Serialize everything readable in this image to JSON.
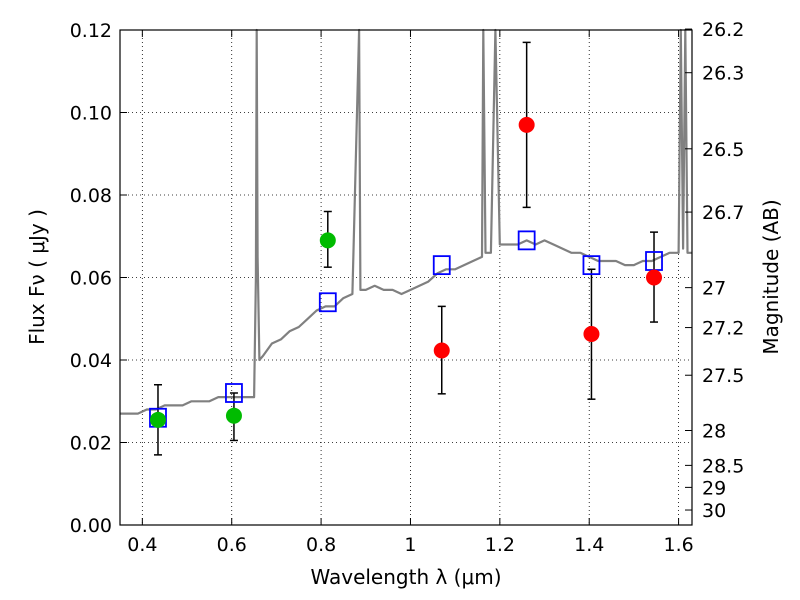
{
  "chart_data": {
    "type": "scatter",
    "xlabel": "Wavelength  λ (μm)",
    "ylabel": "Flux  Fν  ( μJy )",
    "y2label": "Magnitude (AB)",
    "xlim": [
      0.35,
      1.63
    ],
    "ylim": [
      0.0,
      0.12
    ],
    "xticks": [
      0.4,
      0.6,
      0.8,
      1.0,
      1.2,
      1.4,
      1.6
    ],
    "xtick_labels": [
      "0.4",
      "0.6",
      "0.8",
      "1",
      "1.2",
      "1.4",
      "1.6"
    ],
    "yticks": [
      0.0,
      0.02,
      0.04,
      0.06,
      0.08,
      0.1,
      0.12
    ],
    "ytick_labels": [
      "0.00",
      "0.02",
      "0.04",
      "0.06",
      "0.08",
      "0.10",
      "0.12"
    ],
    "mag_ticks": [
      "26.2",
      "26.3",
      "26.5",
      "26.7",
      "27",
      "27.2",
      "27.5",
      "28",
      "28.5",
      "29",
      "30"
    ],
    "grid": true,
    "legend": "none",
    "colors": {
      "spectrum": "#808080",
      "model": "#0000ff",
      "green": "#00bb00",
      "red": "#ff0000",
      "errorbar": "#000000"
    },
    "series": [
      {
        "marker": "line",
        "x": [
          0.35,
          0.37,
          0.39,
          0.41,
          0.43,
          0.45,
          0.47,
          0.49,
          0.51,
          0.53,
          0.55,
          0.57,
          0.59,
          0.61,
          0.63,
          0.65,
          0.654,
          0.656,
          0.658,
          0.662,
          0.67,
          0.69,
          0.71,
          0.73,
          0.75,
          0.77,
          0.79,
          0.81,
          0.83,
          0.85,
          0.87,
          0.885,
          0.888,
          0.891,
          0.9,
          0.92,
          0.94,
          0.96,
          0.98,
          1.0,
          1.02,
          1.04,
          1.06,
          1.08,
          1.1,
          1.12,
          1.14,
          1.16,
          1.163,
          1.168,
          1.18,
          1.19,
          1.2,
          1.22,
          1.24,
          1.26,
          1.28,
          1.3,
          1.32,
          1.34,
          1.36,
          1.38,
          1.4,
          1.42,
          1.44,
          1.46,
          1.48,
          1.5,
          1.52,
          1.54,
          1.56,
          1.58,
          1.6,
          1.605,
          1.61,
          1.615,
          1.62,
          1.63
        ],
        "y": [
          0.027,
          0.027,
          0.027,
          0.028,
          0.028,
          0.029,
          0.029,
          0.029,
          0.03,
          0.03,
          0.03,
          0.031,
          0.031,
          0.031,
          0.031,
          0.031,
          0.06,
          0.12,
          0.065,
          0.04,
          0.041,
          0.044,
          0.045,
          0.047,
          0.048,
          0.05,
          0.052,
          0.053,
          0.053,
          0.055,
          0.056,
          0.12,
          0.057,
          0.057,
          0.057,
          0.058,
          0.057,
          0.057,
          0.056,
          0.057,
          0.058,
          0.059,
          0.061,
          0.062,
          0.062,
          0.063,
          0.064,
          0.065,
          0.12,
          0.066,
          0.066,
          0.12,
          0.068,
          0.068,
          0.068,
          0.069,
          0.068,
          0.069,
          0.068,
          0.067,
          0.066,
          0.066,
          0.065,
          0.064,
          0.064,
          0.064,
          0.063,
          0.063,
          0.064,
          0.064,
          0.065,
          0.066,
          0.066,
          0.12,
          0.067,
          0.12,
          0.066,
          0.066
        ]
      },
      {
        "marker": "open-square",
        "x": [
          0.435,
          0.605,
          0.815,
          1.07,
          1.26,
          1.405,
          1.545
        ],
        "y": [
          0.026,
          0.032,
          0.054,
          0.063,
          0.069,
          0.063,
          0.064
        ]
      },
      {
        "marker": "filled-circle-green",
        "x": [
          0.435,
          0.605,
          0.815
        ],
        "y": [
          0.0255,
          0.0265,
          0.069
        ],
        "yerr_low": [
          0.017,
          0.0205,
          0.0625
        ],
        "yerr_high": [
          0.034,
          0.032,
          0.076
        ]
      },
      {
        "marker": "filled-circle-red",
        "x": [
          1.07,
          1.26,
          1.405,
          1.545
        ],
        "y": [
          0.0423,
          0.097,
          0.0463,
          0.06
        ],
        "yerr_low": [
          0.0318,
          0.077,
          0.0305,
          0.0492
        ],
        "yerr_high": [
          0.053,
          0.117,
          0.062,
          0.071
        ]
      }
    ]
  }
}
